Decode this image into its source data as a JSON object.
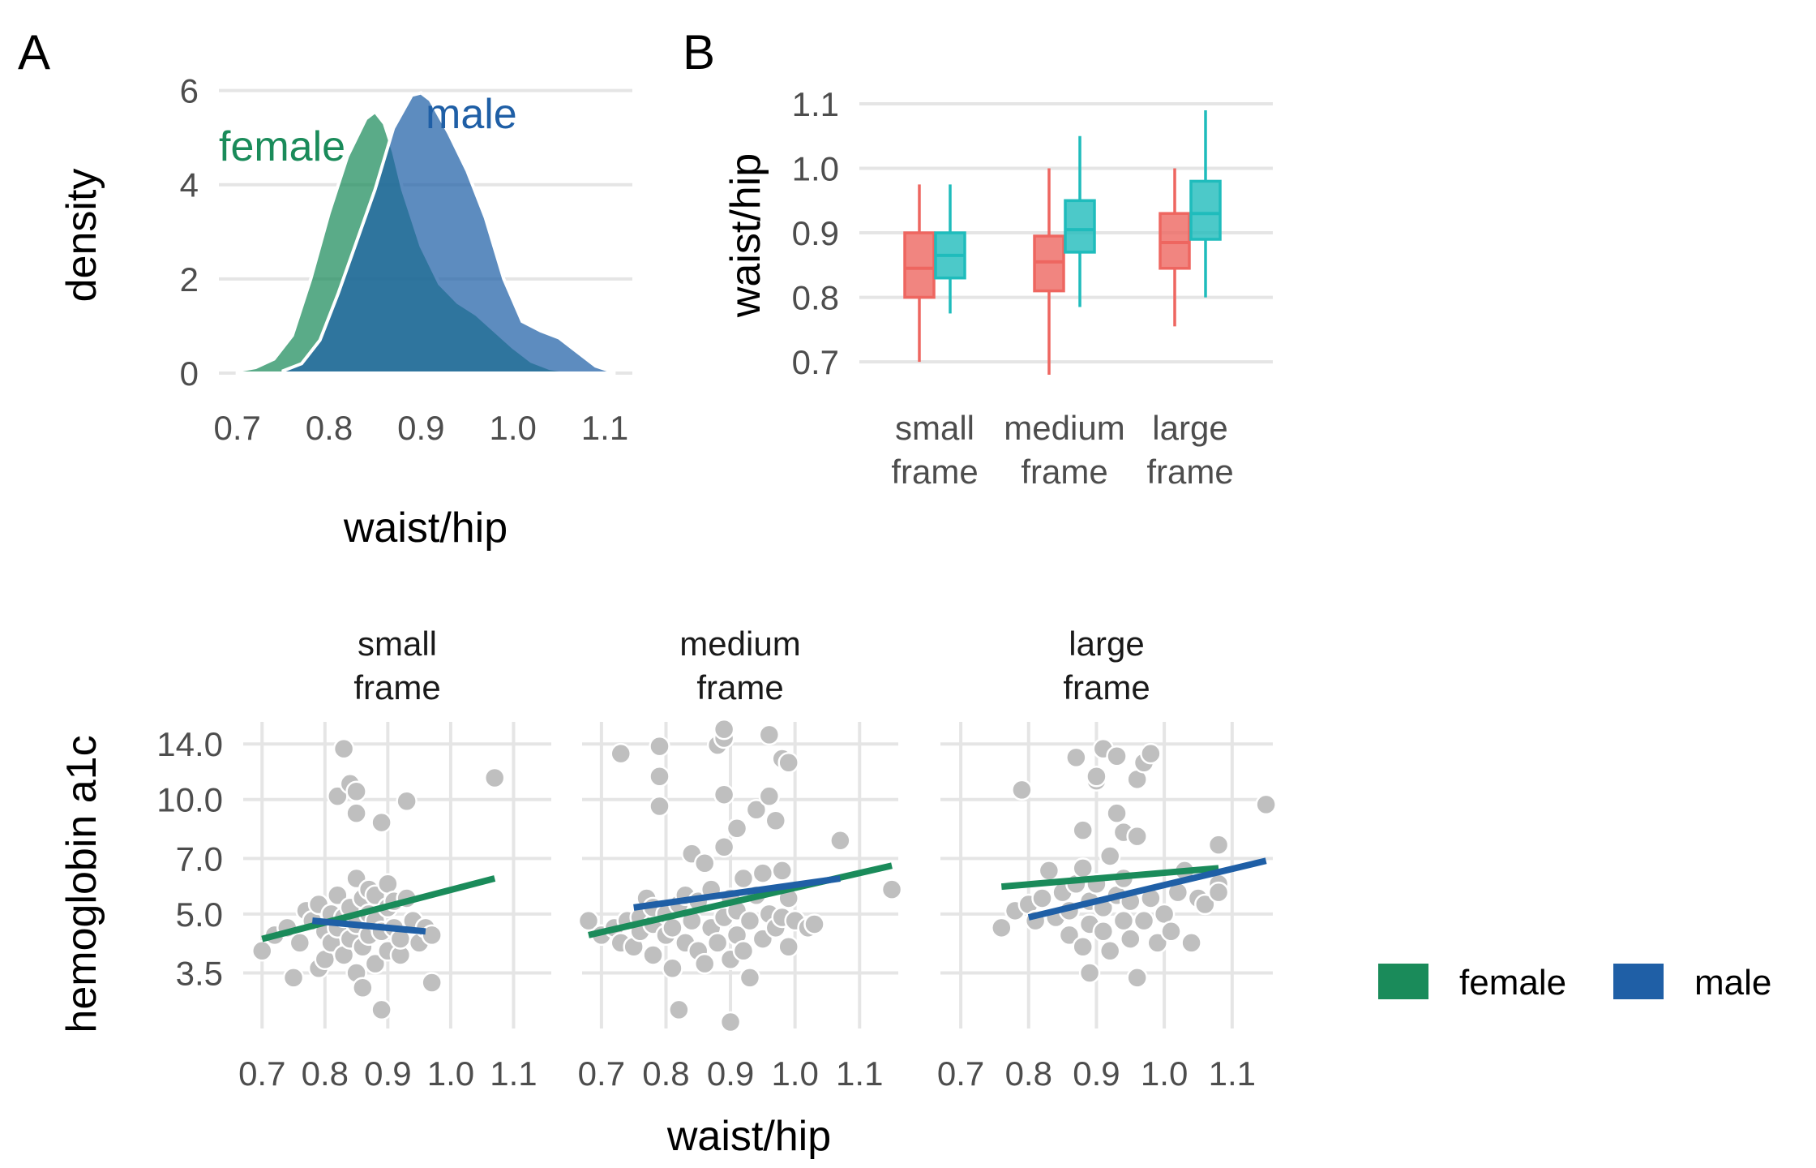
{
  "chart_data": [
    {
      "panel": "A",
      "type": "area",
      "xlabel": "waist/hip",
      "ylabel": "density",
      "xlim": [
        0.68,
        1.13
      ],
      "ylim": [
        0,
        6.2
      ],
      "xticks": [
        "0.7",
        "0.8",
        "0.9",
        "1.0",
        "1.1"
      ],
      "yticks": [
        "0",
        "2",
        "4",
        "6"
      ],
      "series": [
        {
          "name": "female",
          "color": "#1a8b5a",
          "x": [
            0.7,
            0.72,
            0.74,
            0.76,
            0.78,
            0.8,
            0.82,
            0.84,
            0.85,
            0.86,
            0.87,
            0.88,
            0.9,
            0.92,
            0.94,
            0.96,
            0.98,
            1.0,
            1.02,
            1.04,
            1.06,
            1.08
          ],
          "y": [
            0.05,
            0.12,
            0.3,
            0.8,
            2.0,
            3.4,
            4.6,
            5.4,
            5.55,
            5.3,
            4.7,
            3.9,
            2.7,
            1.9,
            1.5,
            1.25,
            0.9,
            0.55,
            0.25,
            0.1,
            0.04,
            0.0
          ]
        },
        {
          "name": "male",
          "color": "#1f5fa6",
          "x": [
            0.75,
            0.77,
            0.79,
            0.81,
            0.83,
            0.85,
            0.87,
            0.89,
            0.9,
            0.91,
            0.93,
            0.95,
            0.97,
            0.99,
            1.01,
            1.03,
            1.05,
            1.07,
            1.09,
            1.11
          ],
          "y": [
            0.05,
            0.2,
            0.7,
            1.7,
            2.8,
            3.9,
            5.2,
            5.9,
            5.95,
            5.8,
            5.1,
            4.3,
            3.3,
            2.0,
            1.1,
            0.9,
            0.75,
            0.45,
            0.15,
            0.02
          ]
        }
      ],
      "annotations": [
        "female",
        "male"
      ]
    },
    {
      "panel": "B",
      "type": "boxplot",
      "ylabel": "waist/hip",
      "ylim": [
        0.68,
        1.1
      ],
      "yticks": [
        "0.7",
        "0.8",
        "0.9",
        "1.0",
        "1.1"
      ],
      "categories": [
        [
          "small",
          "frame"
        ],
        [
          "medium",
          "frame"
        ],
        [
          "large",
          "frame"
        ]
      ],
      "series": [
        {
          "color": "#ee6660",
          "boxes": [
            {
              "min": 0.7,
              "q1": 0.8,
              "median": 0.845,
              "q3": 0.9,
              "max": 0.975
            },
            {
              "min": 0.68,
              "q1": 0.81,
              "median": 0.855,
              "q3": 0.895,
              "max": 1.0
            },
            {
              "min": 0.755,
              "q1": 0.845,
              "median": 0.885,
              "q3": 0.93,
              "max": 1.0
            }
          ]
        },
        {
          "color": "#1fbcbc",
          "boxes": [
            {
              "min": 0.775,
              "q1": 0.83,
              "median": 0.865,
              "q3": 0.9,
              "max": 0.975
            },
            {
              "min": 0.785,
              "q1": 0.87,
              "median": 0.905,
              "q3": 0.95,
              "max": 1.05
            },
            {
              "min": 0.8,
              "q1": 0.89,
              "median": 0.93,
              "q3": 0.98,
              "max": 1.09
            }
          ]
        }
      ]
    },
    {
      "panel": "facets",
      "type": "scatter",
      "xlabel": "waist/hip",
      "ylabel": "hemoglobin a1c",
      "xlim": [
        0.67,
        1.16
      ],
      "ylim": [
        2.5,
        16.0
      ],
      "yscale": "log",
      "xticks": [
        "0.7",
        "0.8",
        "0.9",
        "1.0",
        "1.1"
      ],
      "yticks": [
        "3.5",
        "5.0",
        "7.0",
        "10.0",
        "14.0"
      ],
      "point_color": "#bfbfbf",
      "facets": [
        {
          "label": [
            "small",
            "frame"
          ],
          "points": [
            [
              0.7,
              4.0
            ],
            [
              0.72,
              4.4
            ],
            [
              0.74,
              4.6
            ],
            [
              0.75,
              3.4
            ],
            [
              0.76,
              4.2
            ],
            [
              0.77,
              5.1
            ],
            [
              0.78,
              4.8
            ],
            [
              0.79,
              3.6
            ],
            [
              0.79,
              5.3
            ],
            [
              0.8,
              4.5
            ],
            [
              0.8,
              3.8
            ],
            [
              0.81,
              5.0
            ],
            [
              0.81,
              4.2
            ],
            [
              0.82,
              5.6
            ],
            [
              0.82,
              4.6
            ],
            [
              0.82,
              10.2
            ],
            [
              0.83,
              13.6
            ],
            [
              0.83,
              4.9
            ],
            [
              0.83,
              3.9
            ],
            [
              0.84,
              5.2
            ],
            [
              0.84,
              4.3
            ],
            [
              0.84,
              11.0
            ],
            [
              0.85,
              10.5
            ],
            [
              0.85,
              9.2
            ],
            [
              0.85,
              6.2
            ],
            [
              0.85,
              4.7
            ],
            [
              0.85,
              3.5
            ],
            [
              0.86,
              5.5
            ],
            [
              0.86,
              4.1
            ],
            [
              0.86,
              3.2
            ],
            [
              0.87,
              5.0
            ],
            [
              0.87,
              4.4
            ],
            [
              0.87,
              5.8
            ],
            [
              0.88,
              4.8
            ],
            [
              0.88,
              3.7
            ],
            [
              0.88,
              5.6
            ],
            [
              0.89,
              4.5
            ],
            [
              0.89,
              8.7
            ],
            [
              0.89,
              2.8
            ],
            [
              0.9,
              5.2
            ],
            [
              0.9,
              4.0
            ],
            [
              0.9,
              6.0
            ],
            [
              0.91,
              4.6
            ],
            [
              0.91,
              5.4
            ],
            [
              0.92,
              3.9
            ],
            [
              0.92,
              4.3
            ],
            [
              0.93,
              5.5
            ],
            [
              0.93,
              9.9
            ],
            [
              0.94,
              4.8
            ],
            [
              0.95,
              4.2
            ],
            [
              0.96,
              4.6
            ],
            [
              0.97,
              4.4
            ],
            [
              0.97,
              3.3
            ],
            [
              1.07,
              11.4
            ]
          ],
          "lines": [
            {
              "name": "female",
              "x": [
                0.7,
                1.07
              ],
              "y": [
                4.3,
                6.2
              ]
            },
            {
              "name": "male",
              "x": [
                0.78,
                0.96
              ],
              "y": [
                4.8,
                4.5
              ]
            }
          ]
        },
        {
          "label": [
            "medium",
            "frame"
          ],
          "points": [
            [
              0.68,
              4.8
            ],
            [
              0.7,
              4.4
            ],
            [
              0.72,
              4.6
            ],
            [
              0.73,
              4.2
            ],
            [
              0.73,
              13.2
            ],
            [
              0.74,
              4.8
            ],
            [
              0.75,
              4.1
            ],
            [
              0.76,
              4.9
            ],
            [
              0.76,
              4.5
            ],
            [
              0.77,
              5.5
            ],
            [
              0.78,
              3.9
            ],
            [
              0.78,
              4.7
            ],
            [
              0.78,
              5.2
            ],
            [
              0.79,
              9.6
            ],
            [
              0.79,
              11.5
            ],
            [
              0.79,
              13.8
            ],
            [
              0.8,
              4.4
            ],
            [
              0.8,
              5.0
            ],
            [
              0.81,
              3.6
            ],
            [
              0.81,
              4.6
            ],
            [
              0.82,
              5.3
            ],
            [
              0.82,
              2.8
            ],
            [
              0.83,
              4.2
            ],
            [
              0.83,
              5.6
            ],
            [
              0.84,
              7.2
            ],
            [
              0.84,
              4.8
            ],
            [
              0.85,
              4.0
            ],
            [
              0.85,
              5.4
            ],
            [
              0.86,
              6.8
            ],
            [
              0.86,
              3.7
            ],
            [
              0.87,
              4.6
            ],
            [
              0.87,
              5.8
            ],
            [
              0.88,
              4.2
            ],
            [
              0.88,
              13.9
            ],
            [
              0.89,
              14.5
            ],
            [
              0.89,
              15.3
            ],
            [
              0.89,
              10.3
            ],
            [
              0.89,
              7.5
            ],
            [
              0.89,
              4.9
            ],
            [
              0.9,
              5.5
            ],
            [
              0.9,
              3.8
            ],
            [
              0.9,
              2.6
            ],
            [
              0.91,
              4.4
            ],
            [
              0.91,
              8.4
            ],
            [
              0.91,
              5.1
            ],
            [
              0.92,
              4.0
            ],
            [
              0.92,
              6.2
            ],
            [
              0.93,
              4.8
            ],
            [
              0.93,
              3.4
            ],
            [
              0.94,
              9.4
            ],
            [
              0.94,
              5.6
            ],
            [
              0.95,
              4.3
            ],
            [
              0.95,
              6.4
            ],
            [
              0.96,
              10.2
            ],
            [
              0.96,
              14.8
            ],
            [
              0.96,
              5.0
            ],
            [
              0.97,
              4.6
            ],
            [
              0.97,
              8.8
            ],
            [
              0.98,
              12.8
            ],
            [
              0.98,
              4.9
            ],
            [
              0.98,
              6.5
            ],
            [
              0.99,
              4.1
            ],
            [
              0.99,
              5.5
            ],
            [
              0.99,
              12.5
            ],
            [
              1.0,
              4.8
            ],
            [
              1.02,
              4.6
            ],
            [
              1.03,
              4.7
            ],
            [
              1.07,
              7.8
            ],
            [
              1.15,
              5.8
            ]
          ],
          "lines": [
            {
              "name": "female",
              "x": [
                0.68,
                1.15
              ],
              "y": [
                4.4,
                6.7
              ]
            },
            {
              "name": "male",
              "x": [
                0.75,
                1.07
              ],
              "y": [
                5.2,
                6.2
              ]
            }
          ]
        },
        {
          "label": [
            "large",
            "frame"
          ],
          "points": [
            [
              0.76,
              4.6
            ],
            [
              0.78,
              5.1
            ],
            [
              0.79,
              10.6
            ],
            [
              0.8,
              5.3
            ],
            [
              0.81,
              4.8
            ],
            [
              0.82,
              5.5
            ],
            [
              0.83,
              6.5
            ],
            [
              0.84,
              4.9
            ],
            [
              0.85,
              5.7
            ],
            [
              0.86,
              4.4
            ],
            [
              0.86,
              5.1
            ],
            [
              0.87,
              12.9
            ],
            [
              0.87,
              6.0
            ],
            [
              0.88,
              8.3
            ],
            [
              0.88,
              4.1
            ],
            [
              0.88,
              6.6
            ],
            [
              0.89,
              4.7
            ],
            [
              0.89,
              5.4
            ],
            [
              0.89,
              3.5
            ],
            [
              0.9,
              6.0
            ],
            [
              0.9,
              11.2
            ],
            [
              0.9,
              11.5
            ],
            [
              0.91,
              5.2
            ],
            [
              0.91,
              4.5
            ],
            [
              0.91,
              13.6
            ],
            [
              0.92,
              7.1
            ],
            [
              0.92,
              4.0
            ],
            [
              0.93,
              5.6
            ],
            [
              0.93,
              13.0
            ],
            [
              0.93,
              9.2
            ],
            [
              0.94,
              4.8
            ],
            [
              0.94,
              6.2
            ],
            [
              0.94,
              8.2
            ],
            [
              0.95,
              5.4
            ],
            [
              0.95,
              4.3
            ],
            [
              0.96,
              11.3
            ],
            [
              0.96,
              3.4
            ],
            [
              0.96,
              8.0
            ],
            [
              0.97,
              4.8
            ],
            [
              0.97,
              12.5
            ],
            [
              0.98,
              5.5
            ],
            [
              0.98,
              13.2
            ],
            [
              0.99,
              4.2
            ],
            [
              1.0,
              5.0
            ],
            [
              1.01,
              4.5
            ],
            [
              1.02,
              5.7
            ],
            [
              1.03,
              6.5
            ],
            [
              1.04,
              4.2
            ],
            [
              1.05,
              5.5
            ],
            [
              1.06,
              5.3
            ],
            [
              1.08,
              6.0
            ],
            [
              1.08,
              5.7
            ],
            [
              1.08,
              7.6
            ],
            [
              1.15,
              9.7
            ]
          ],
          "lines": [
            {
              "name": "female",
              "x": [
                0.76,
                1.08
              ],
              "y": [
                5.9,
                6.6
              ]
            },
            {
              "name": "male",
              "x": [
                0.8,
                1.15
              ],
              "y": [
                4.9,
                6.9
              ]
            }
          ]
        }
      ]
    }
  ],
  "legend": {
    "position": "right",
    "items": [
      {
        "label": "female",
        "color": "#1a8b5a"
      },
      {
        "label": "male",
        "color": "#1f5fa6"
      }
    ]
  },
  "panel_tags": [
    "A",
    "B"
  ]
}
